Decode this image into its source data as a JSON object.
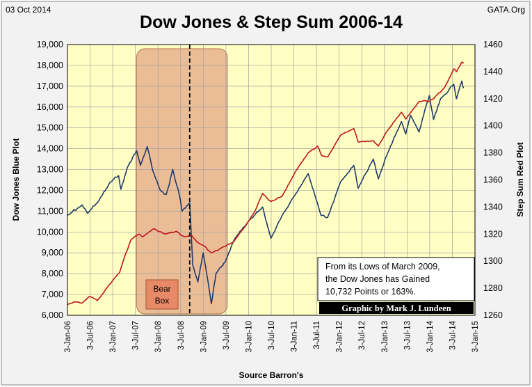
{
  "header": {
    "date": "03 Oct 2014",
    "source_site": "GATA.Org"
  },
  "chart_data": {
    "type": "line",
    "title": "Dow Jones & Step Sum 2006-14",
    "xlabel": "Source Barron's",
    "ylabel_left": "Dow Jones  Blue Plot",
    "ylabel_right": "Step Sum  Red Plot",
    "ylim_left": [
      6000,
      19000
    ],
    "ylim_right": [
      1260,
      1460
    ],
    "yticks_left": [
      "6,000",
      "7,000",
      "8,000",
      "9,000",
      "10,000",
      "11,000",
      "12,000",
      "13,000",
      "14,000",
      "15,000",
      "16,000",
      "17,000",
      "18,000",
      "19,000"
    ],
    "yticks_right": [
      "1260",
      "1280",
      "1300",
      "1320",
      "1340",
      "1360",
      "1380",
      "1400",
      "1420",
      "1440",
      "1460"
    ],
    "xticks": [
      "3-Jan-06",
      "3-Jul-06",
      "3-Jan-07",
      "3-Jul-07",
      "3-Jan-08",
      "3-Jul-08",
      "3-Jan-09",
      "3-Jul-09",
      "3-Jan-10",
      "3-Jul-10",
      "3-Jan-11",
      "3-Jul-11",
      "3-Jan-12",
      "3-Jul-12",
      "3-Jan-13",
      "3-Jul-13",
      "3-Jan-14",
      "3-Jul-14",
      "3-Jan-15"
    ],
    "xrange": [
      "2006-01-03",
      "2015-01-03"
    ],
    "grid": true,
    "series": [
      {
        "axis": "left",
        "color": "#1c3a6b",
        "points": [
          [
            "2006-01-03",
            10800
          ],
          [
            "2006-05-01",
            11300
          ],
          [
            "2006-06-15",
            10900
          ],
          [
            "2006-09-01",
            11400
          ],
          [
            "2006-12-15",
            12400
          ],
          [
            "2007-02-20",
            12700
          ],
          [
            "2007-03-10",
            12050
          ],
          [
            "2007-05-01",
            13100
          ],
          [
            "2007-07-15",
            13900
          ],
          [
            "2007-08-15",
            13200
          ],
          [
            "2007-10-09",
            14100
          ],
          [
            "2007-11-20",
            13000
          ],
          [
            "2008-01-22",
            12000
          ],
          [
            "2008-03-10",
            11800
          ],
          [
            "2008-05-01",
            13000
          ],
          [
            "2008-06-15",
            12000
          ],
          [
            "2008-07-15",
            11000
          ],
          [
            "2008-09-15",
            11400
          ],
          [
            "2008-10-10",
            8400
          ],
          [
            "2008-11-20",
            7600
          ],
          [
            "2009-01-02",
            9000
          ],
          [
            "2009-02-10",
            7600
          ],
          [
            "2009-03-09",
            6550
          ],
          [
            "2009-04-15",
            8000
          ],
          [
            "2009-07-01",
            8600
          ],
          [
            "2009-09-15",
            9700
          ],
          [
            "2010-01-15",
            10600
          ],
          [
            "2010-04-26",
            11200
          ],
          [
            "2010-07-02",
            9700
          ],
          [
            "2010-10-01",
            10800
          ],
          [
            "2011-01-15",
            11800
          ],
          [
            "2011-04-29",
            12800
          ],
          [
            "2011-08-10",
            10800
          ],
          [
            "2011-10-03",
            10700
          ],
          [
            "2012-01-15",
            12400
          ],
          [
            "2012-05-01",
            13200
          ],
          [
            "2012-06-05",
            12100
          ],
          [
            "2012-10-05",
            13500
          ],
          [
            "2012-11-15",
            12550
          ],
          [
            "2013-01-15",
            13600
          ],
          [
            "2013-05-20",
            15300
          ],
          [
            "2013-06-24",
            14700
          ],
          [
            "2013-08-01",
            15600
          ],
          [
            "2013-10-09",
            14800
          ],
          [
            "2013-12-31",
            16550
          ],
          [
            "2014-02-03",
            15400
          ],
          [
            "2014-04-01",
            16400
          ],
          [
            "2014-07-16",
            17100
          ],
          [
            "2014-08-07",
            16400
          ],
          [
            "2014-09-19",
            17250
          ],
          [
            "2014-10-03",
            16900
          ]
        ]
      },
      {
        "axis": "right",
        "color": "#c0141c",
        "points": [
          [
            "2006-01-03",
            1268
          ],
          [
            "2006-03-01",
            1270
          ],
          [
            "2006-05-01",
            1269
          ],
          [
            "2006-07-01",
            1274
          ],
          [
            "2006-09-01",
            1271
          ],
          [
            "2006-12-01",
            1282
          ],
          [
            "2007-02-01",
            1289
          ],
          [
            "2007-03-01",
            1292
          ],
          [
            "2007-04-15",
            1305
          ],
          [
            "2007-06-01",
            1316
          ],
          [
            "2007-08-01",
            1320
          ],
          [
            "2007-09-01",
            1318
          ],
          [
            "2007-12-01",
            1324
          ],
          [
            "2008-03-01",
            1320
          ],
          [
            "2008-06-01",
            1322
          ],
          [
            "2008-08-01",
            1318
          ],
          [
            "2008-10-01",
            1319
          ],
          [
            "2008-11-15",
            1314
          ],
          [
            "2009-01-15",
            1311
          ],
          [
            "2009-03-09",
            1306
          ],
          [
            "2009-06-01",
            1310
          ],
          [
            "2009-09-01",
            1314
          ],
          [
            "2009-12-01",
            1325
          ],
          [
            "2010-03-01",
            1338
          ],
          [
            "2010-04-26",
            1350
          ],
          [
            "2010-07-02",
            1344
          ],
          [
            "2010-10-01",
            1348
          ],
          [
            "2011-01-15",
            1366
          ],
          [
            "2011-04-29",
            1380
          ],
          [
            "2011-07-15",
            1385
          ],
          [
            "2011-08-15",
            1378
          ],
          [
            "2011-10-03",
            1377
          ],
          [
            "2012-01-15",
            1393
          ],
          [
            "2012-05-01",
            1398
          ],
          [
            "2012-06-05",
            1388
          ],
          [
            "2012-10-05",
            1389
          ],
          [
            "2012-11-15",
            1385
          ],
          [
            "2013-01-15",
            1395
          ],
          [
            "2013-05-20",
            1410
          ],
          [
            "2013-06-24",
            1405
          ],
          [
            "2013-10-09",
            1418
          ],
          [
            "2013-12-31",
            1418
          ],
          [
            "2014-02-03",
            1420
          ],
          [
            "2014-05-01",
            1428
          ],
          [
            "2014-07-16",
            1442
          ],
          [
            "2014-08-07",
            1440
          ],
          [
            "2014-09-19",
            1447
          ],
          [
            "2014-10-03",
            1446
          ]
        ]
      }
    ],
    "annotations": {
      "bear_box": {
        "label_line1": "Bear",
        "label_line2": "Box",
        "start": "2007-07-15",
        "end": "2009-07-15",
        "fill": "#e8b28f"
      },
      "marker_line_date": "2008-09-15",
      "note_lines": [
        "From  its Lows of March 2009,",
        "the Dow Jones has Gained",
        "10,732 Points or 163%."
      ],
      "credit": "Graphic by Mark J. Lundeen"
    },
    "colors": {
      "plot_background": "#ffffc4",
      "page_background": "#f2f2f2",
      "grid": "#a0a0a0"
    }
  }
}
